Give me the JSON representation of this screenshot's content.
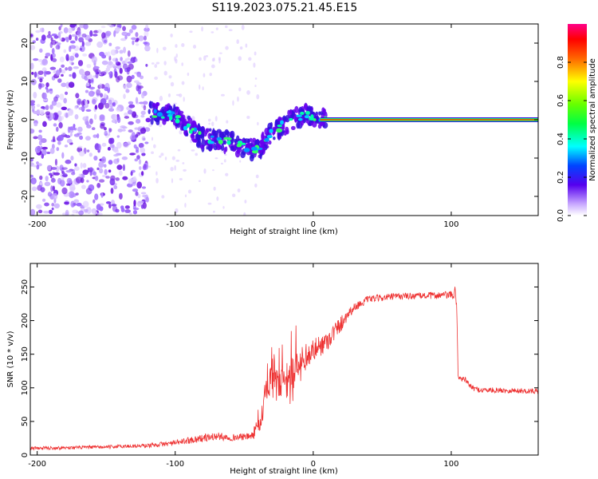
{
  "title": "S119.2023.075.21.45.E15",
  "chart_data": [
    {
      "type": "heatmap",
      "panel": "spectrogram",
      "xlabel": "Height of straight line (km)",
      "ylabel": "Frequency (Hz)",
      "xlim": [
        -205,
        163
      ],
      "ylim": [
        -25,
        25
      ],
      "xticks": [
        -200,
        -100,
        0,
        100
      ],
      "yticks": [
        -20,
        -10,
        0,
        10,
        20
      ],
      "colorbar": {
        "label": "Normalized spectral amplitude",
        "range": [
          0,
          1
        ],
        "ticks": [
          0.0,
          0.2,
          0.4,
          0.6,
          0.8
        ],
        "tick_labels": [
          "0.0",
          "0.2",
          "0.4",
          "0.6",
          "0.8"
        ]
      },
      "features": [
        {
          "name": "noise",
          "x_range": [
            -205,
            -120
          ],
          "f_range": [
            -25,
            25
          ],
          "amplitude": 0.1
        },
        {
          "name": "drifting-tone",
          "points": [
            [
              -120,
              2
            ],
            [
              -100,
              1
            ],
            [
              -90,
              -2
            ],
            [
              -80,
              -5
            ],
            [
              -70,
              -5
            ],
            [
              -60,
              -6
            ],
            [
              -50,
              -7
            ],
            [
              -40,
              -8
            ],
            [
              -30,
              -3
            ],
            [
              -20,
              -1
            ],
            [
              -10,
              1
            ],
            [
              0,
              1
            ],
            [
              10,
              0
            ]
          ],
          "amplitude": 0.35
        },
        {
          "name": "carrier-line",
          "x_range": [
            5,
            163
          ],
          "frequency": 0,
          "amplitude": 0.9
        }
      ]
    },
    {
      "type": "line",
      "panel": "snr",
      "xlabel": "Height of straight line (km)",
      "ylabel": "SNR (10 * v/v)",
      "xlim": [
        -205,
        163
      ],
      "ylim": [
        0,
        285
      ],
      "xticks": [
        -200,
        -100,
        0,
        100
      ],
      "yticks": [
        0,
        50,
        100,
        150,
        200,
        250
      ],
      "color": "#ee3333",
      "series": [
        {
          "name": "SNR",
          "x": [
            -205,
            -150,
            -120,
            -100,
            -90,
            -80,
            -70,
            -60,
            -50,
            -45,
            -40,
            -35,
            -30,
            -25,
            -20,
            -15,
            -10,
            -5,
            0,
            10,
            20,
            25,
            30,
            40,
            60,
            80,
            100,
            103,
            104,
            105,
            110,
            115,
            120,
            140,
            163
          ],
          "y": [
            10,
            12,
            14,
            18,
            22,
            25,
            28,
            26,
            27,
            28,
            40,
            80,
            110,
            100,
            105,
            120,
            130,
            145,
            155,
            170,
            195,
            210,
            220,
            232,
            236,
            237,
            238,
            240,
            220,
            115,
            112,
            100,
            97,
            96,
            95
          ],
          "noise": [
            5,
            5,
            6,
            8,
            10,
            12,
            12,
            10,
            10,
            10,
            30,
            50,
            55,
            50,
            50,
            45,
            40,
            35,
            35,
            30,
            25,
            18,
            12,
            10,
            10,
            10,
            12,
            25,
            8,
            8,
            8,
            8,
            8,
            8,
            8
          ]
        }
      ]
    }
  ]
}
